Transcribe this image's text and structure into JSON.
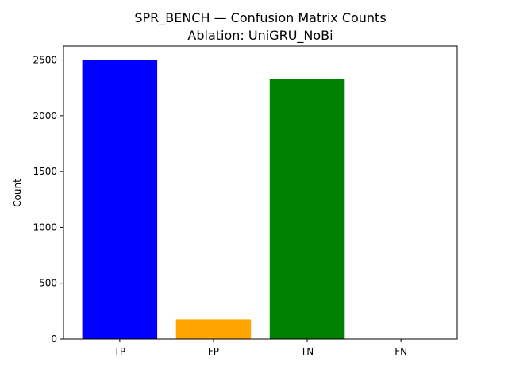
{
  "chart_data": {
    "type": "bar",
    "title": "SPR_BENCH — Confusion Matrix Counts",
    "subtitle": "Ablation: UniGRU_NoBi",
    "xlabel": "",
    "ylabel": "Count",
    "categories": [
      "TP",
      "FP",
      "TN",
      "FN"
    ],
    "values": [
      2500,
      175,
      2330,
      0
    ],
    "colors": [
      "#0000ff",
      "#ffa500",
      "#008000",
      "#ff0000"
    ],
    "ylim": [
      0,
      2625
    ],
    "yticks": [
      0,
      500,
      1000,
      1500,
      2000,
      2500
    ],
    "grid": false,
    "legend": "none"
  }
}
